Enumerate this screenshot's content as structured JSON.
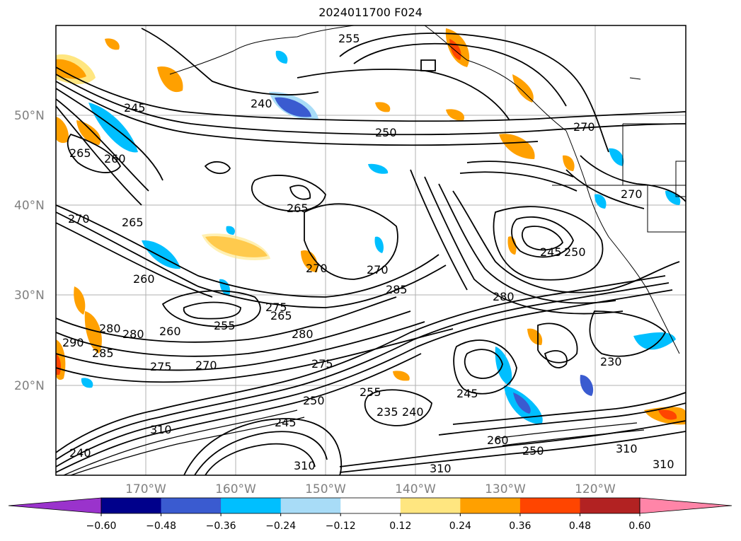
{
  "title": "2024011700 F024",
  "lat_labels": [
    "50°N",
    "40°N",
    "30°N",
    "20°N"
  ],
  "lon_labels": [
    "170°W",
    "160°W",
    "150°W",
    "140°W",
    "130°W",
    "120°W"
  ],
  "colorbar": {
    "ticks": [
      "−0.60",
      "−0.48",
      "−0.36",
      "−0.24",
      "−0.12",
      "0.12",
      "0.24",
      "0.36",
      "0.48",
      "0.60"
    ],
    "colors": [
      "#9a33cc",
      "#00008b",
      "#3a5bd0",
      "#00bfff",
      "#a8dcf7",
      "#ffffff",
      "#ffe680",
      "#ffa000",
      "#ff4500",
      "#b22222",
      "#ff85a8"
    ]
  },
  "contour_labels": [
    {
      "text": "255"
    },
    {
      "text": "245"
    },
    {
      "text": "240"
    },
    {
      "text": "250"
    },
    {
      "text": "265"
    },
    {
      "text": "260"
    },
    {
      "text": "265"
    },
    {
      "text": "270"
    },
    {
      "text": "265"
    },
    {
      "text": "270"
    },
    {
      "text": "270"
    },
    {
      "text": "270"
    },
    {
      "text": "260"
    },
    {
      "text": "285"
    },
    {
      "text": "275"
    },
    {
      "text": "265"
    },
    {
      "text": "280"
    },
    {
      "text": "260"
    },
    {
      "text": "255"
    },
    {
      "text": "280"
    },
    {
      "text": "280"
    },
    {
      "text": "275"
    },
    {
      "text": "270"
    },
    {
      "text": "290"
    },
    {
      "text": "285"
    },
    {
      "text": "280"
    },
    {
      "text": "275"
    },
    {
      "text": "230"
    },
    {
      "text": "245"
    },
    {
      "text": "250"
    },
    {
      "text": "255"
    },
    {
      "text": "235"
    },
    {
      "text": "240"
    },
    {
      "text": "245"
    },
    {
      "text": "250"
    },
    {
      "text": "310"
    },
    {
      "text": "310"
    },
    {
      "text": "310"
    },
    {
      "text": "310"
    },
    {
      "text": "310"
    },
    {
      "text": "240"
    },
    {
      "text": "260"
    },
    {
      "text": "250"
    },
    {
      "text": "270"
    },
    {
      "text": "245"
    }
  ]
}
